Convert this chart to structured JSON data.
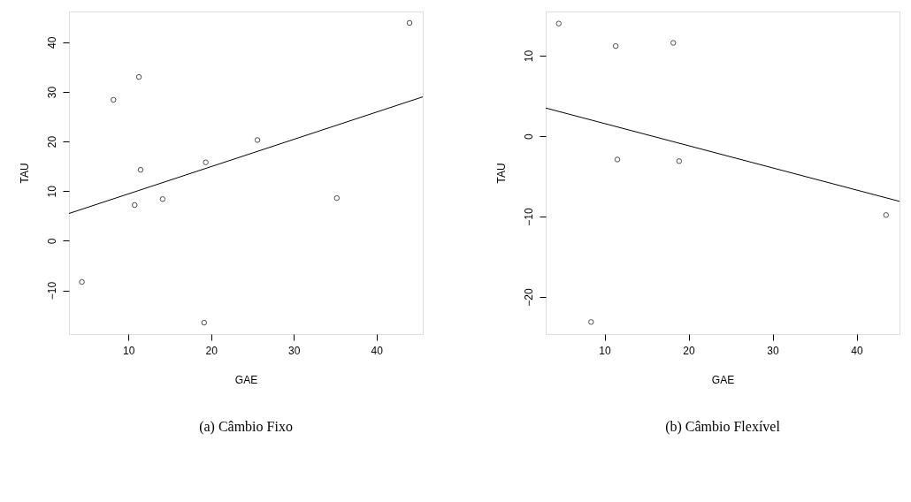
{
  "chart_data": [
    {
      "type": "scatter",
      "title": "(a)  Câmbio  Fixo",
      "xlabel": "GAE",
      "ylabel": "TAU",
      "xlim": [
        2.8,
        45.6
      ],
      "ylim": [
        -18.8,
        46.2
      ],
      "xticks": [
        10,
        20,
        30,
        40
      ],
      "yticks": [
        -10,
        0,
        10,
        20,
        30,
        40
      ],
      "grid": false,
      "series": [
        {
          "color": "#000000",
          "marker": "circle",
          "x": [
            4.36,
            8.18,
            11.26,
            11.46,
            10.75,
            14.13,
            19.35,
            19.15,
            25.6,
            35.2,
            44.0
          ],
          "values": [
            -8.3,
            28.4,
            33.0,
            14.3,
            7.2,
            8.4,
            15.8,
            -16.5,
            20.3,
            8.6,
            43.9
          ]
        },
        {
          "type": "line",
          "marker": "none",
          "color": "#000000",
          "x": [
            2.8,
            45.6
          ],
          "values": [
            5.5,
            29.0
          ]
        }
      ]
    },
    {
      "type": "scatter",
      "title": "(b)  Câmbio Flexível",
      "xlabel": "GAE",
      "ylabel": "TAU",
      "xlim": [
        3.0,
        45.1
      ],
      "ylim": [
        -24.6,
        15.5
      ],
      "xticks": [
        10,
        20,
        30,
        40
      ],
      "yticks": [
        -20,
        -10,
        0,
        10
      ],
      "grid": false,
      "series": [
        {
          "color": "#000000",
          "marker": "circle",
          "x": [
            4.55,
            11.33,
            18.18,
            11.53,
            18.88,
            8.4,
            43.5
          ],
          "values": [
            14.0,
            11.2,
            11.6,
            -2.9,
            -3.1,
            -23.1,
            -9.8
          ]
        },
        {
          "type": "line",
          "marker": "none",
          "color": "#000000",
          "x": [
            3.0,
            45.1
          ],
          "values": [
            3.5,
            -8.1
          ]
        }
      ]
    }
  ]
}
